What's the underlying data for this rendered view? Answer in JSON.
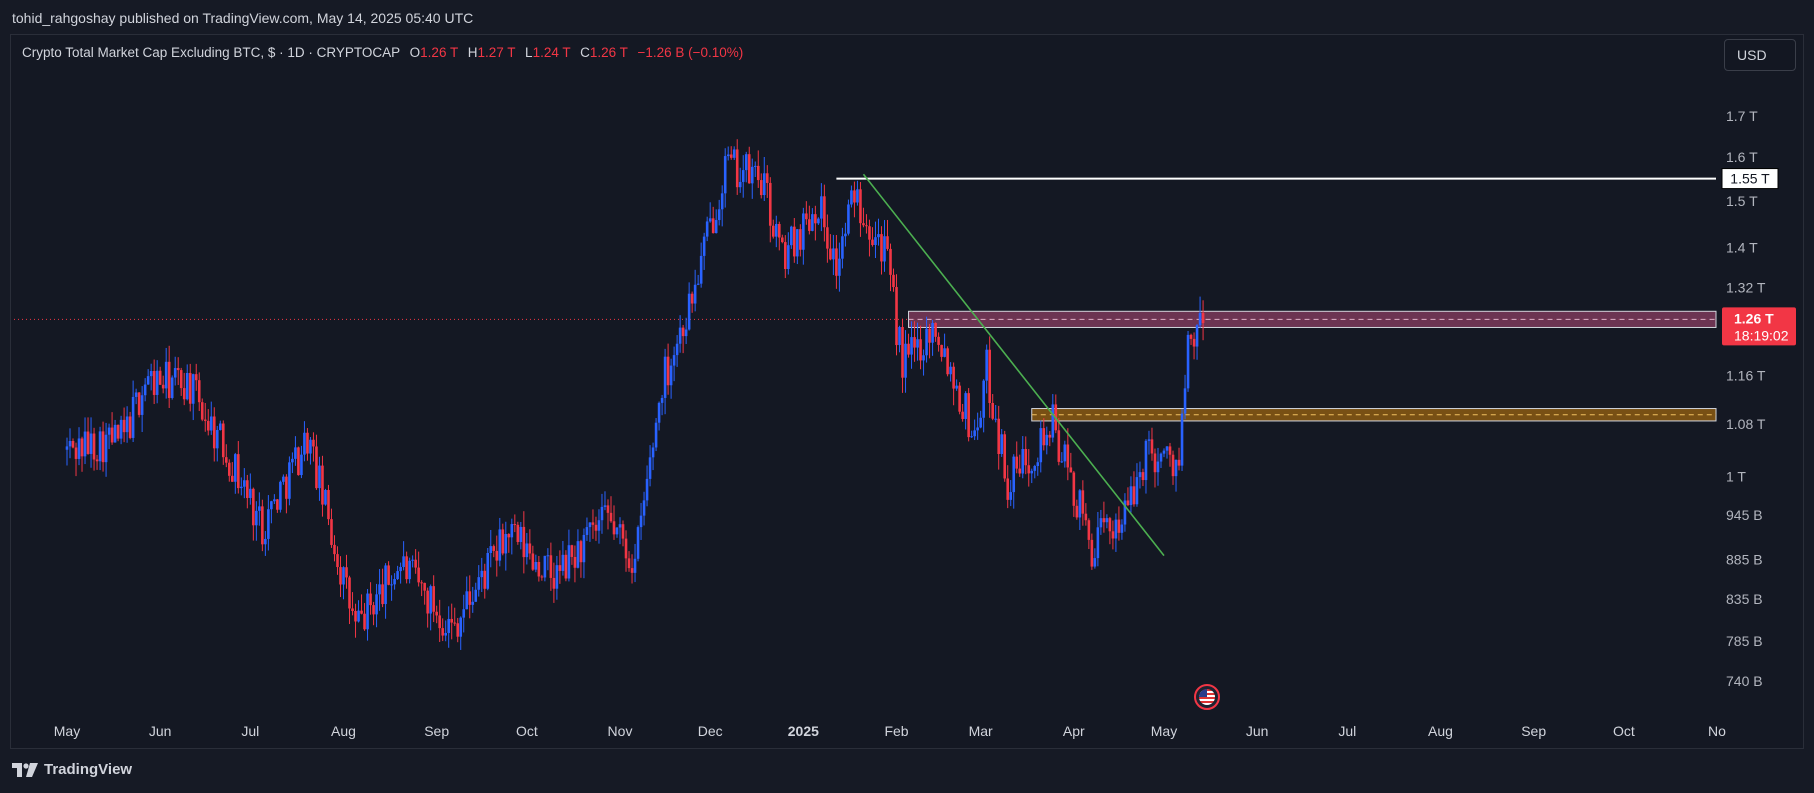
{
  "header": {
    "published": "tohid_rahgoshay published on TradingView.com, May 14, 2025 05:40 UTC"
  },
  "legend": {
    "title": "Crypto Total Market Cap Excluding BTC, $ · 1D · CRYPTOCAP",
    "o_label": "O",
    "o_value": "1.26 T",
    "h_label": "H",
    "h_value": "1.27 T",
    "l_label": "L",
    "l_value": "1.24 T",
    "c_label": "C",
    "c_value": "1.26 T",
    "change": "−1.26 B (−0.10%)"
  },
  "currency_button": "USD",
  "footer": {
    "brand": "TradingView"
  },
  "colors": {
    "background": "#141823",
    "up_candle": "#2962ff",
    "down_candle": "#f23645",
    "trendline": "#4caf50",
    "resistance_line": "#ffffff",
    "upper_zone": "#7b3a5a",
    "lower_zone": "#8a5a12"
  },
  "chart_data": {
    "type": "candlestick",
    "symbol": "CRYPTOCAP",
    "y_scale": "log",
    "y_ticks": [
      {
        "label": "1.7 T",
        "value": 1.7
      },
      {
        "label": "1.6 T",
        "value": 1.6
      },
      {
        "label": "1.5 T",
        "value": 1.5
      },
      {
        "label": "1.4 T",
        "value": 1.4
      },
      {
        "label": "1.32 T",
        "value": 1.32
      },
      {
        "label": "1.16 T",
        "value": 1.16
      },
      {
        "label": "1.08 T",
        "value": 1.08
      },
      {
        "label": "1 T",
        "value": 1.0
      },
      {
        "label": "945 B",
        "value": 0.945
      },
      {
        "label": "885 B",
        "value": 0.885
      },
      {
        "label": "835 B",
        "value": 0.835
      },
      {
        "label": "785 B",
        "value": 0.785
      },
      {
        "label": "740 B",
        "value": 0.74
      }
    ],
    "x_ticks": [
      "May",
      "Jun",
      "Jul",
      "Aug",
      "Sep",
      "Oct",
      "Nov",
      "Dec",
      "2025",
      "Feb",
      "Mar",
      "Apr",
      "May",
      "Jun",
      "Jul",
      "Aug",
      "Sep",
      "Oct",
      "No"
    ],
    "price_series": [
      {
        "date": "2024-05-01",
        "close": 1.04
      },
      {
        "date": "2024-05-20",
        "close": 1.06
      },
      {
        "date": "2024-05-27",
        "close": 1.15
      },
      {
        "date": "2024-06-10",
        "close": 1.15
      },
      {
        "date": "2024-06-25",
        "close": 1.02
      },
      {
        "date": "2024-07-05",
        "close": 0.93
      },
      {
        "date": "2024-07-20",
        "close": 1.06
      },
      {
        "date": "2024-08-05",
        "close": 0.8
      },
      {
        "date": "2024-08-20",
        "close": 0.88
      },
      {
        "date": "2024-09-06",
        "close": 0.8
      },
      {
        "date": "2024-09-25",
        "close": 0.92
      },
      {
        "date": "2024-10-10",
        "close": 0.86
      },
      {
        "date": "2024-10-28",
        "close": 0.94
      },
      {
        "date": "2024-11-06",
        "close": 0.88
      },
      {
        "date": "2024-11-15",
        "close": 1.15
      },
      {
        "date": "2024-11-25",
        "close": 1.3
      },
      {
        "date": "2024-12-06",
        "close": 1.58
      },
      {
        "date": "2024-12-18",
        "close": 1.55
      },
      {
        "date": "2024-12-25",
        "close": 1.38
      },
      {
        "date": "2025-01-06",
        "close": 1.5
      },
      {
        "date": "2025-01-12",
        "close": 1.36
      },
      {
        "date": "2025-01-18",
        "close": 1.52
      },
      {
        "date": "2025-01-28",
        "close": 1.4
      },
      {
        "date": "2025-02-03",
        "close": 1.18
      },
      {
        "date": "2025-02-14",
        "close": 1.25
      },
      {
        "date": "2025-02-27",
        "close": 1.06
      },
      {
        "date": "2025-03-03",
        "close": 1.17
      },
      {
        "date": "2025-03-10",
        "close": 0.99
      },
      {
        "date": "2025-03-25",
        "close": 1.08
      },
      {
        "date": "2025-04-07",
        "close": 0.9
      },
      {
        "date": "2025-04-20",
        "close": 0.96
      },
      {
        "date": "2025-04-25",
        "close": 1.04
      },
      {
        "date": "2025-05-06",
        "close": 1.02
      },
      {
        "date": "2025-05-09",
        "close": 1.2
      },
      {
        "date": "2025-05-14",
        "close": 1.26
      }
    ],
    "annotations": {
      "resistance_line": {
        "value": 1.55,
        "label": "1.55 T",
        "from": "2025-01-12"
      },
      "trendline": {
        "from": {
          "date": "2025-01-21",
          "value": 1.56
        },
        "to": {
          "date": "2025-05-01",
          "value": 0.89
        }
      },
      "upper_zone": {
        "low": 1.245,
        "high": 1.275,
        "from": "2025-02-05"
      },
      "lower_zone": {
        "low": 1.085,
        "high": 1.105,
        "from": "2025-03-18"
      },
      "current_price": {
        "label": "1.26 T",
        "countdown": "18:19:02",
        "value": 1.26
      }
    }
  }
}
